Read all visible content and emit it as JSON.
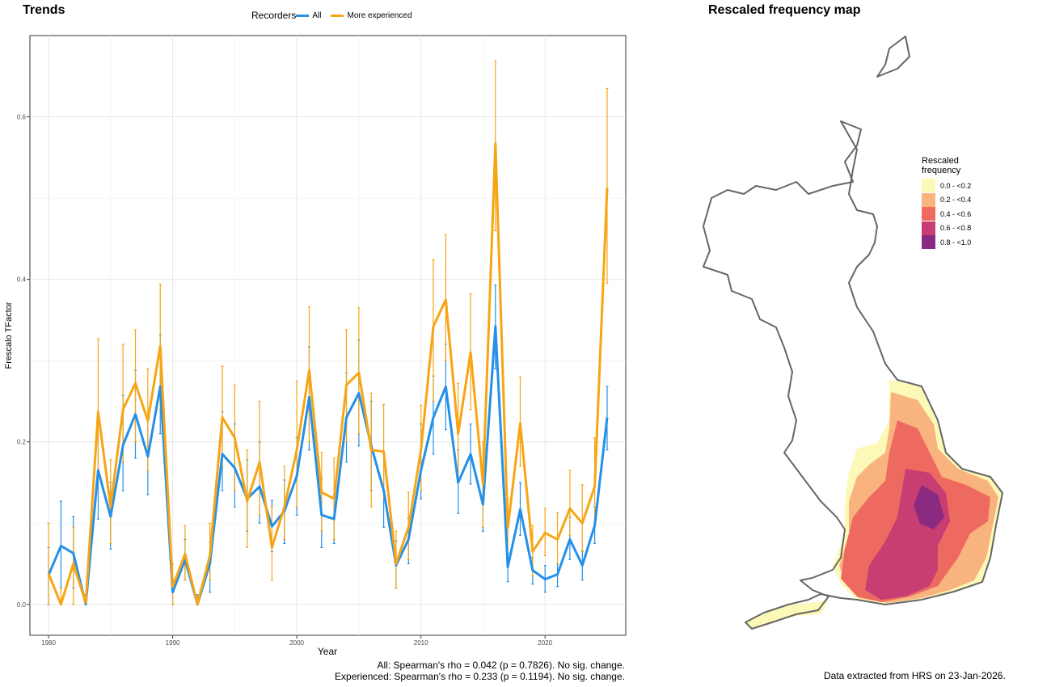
{
  "trends_title": "Trends",
  "map_title": "Rescaled frequency map",
  "legend": {
    "title": "Recorders",
    "entries": [
      {
        "label": "All",
        "color": "#2490e8"
      },
      {
        "label": "More experienced",
        "color": "#f7a514"
      }
    ]
  },
  "stats": {
    "all": "All: Spearman's rho = 0.042 (p = 0.7826). No sig. change.",
    "experienced": "Experienced: Spearman's rho = 0.233 (p = 0.1194). No sig. change."
  },
  "footer_note": "Data extracted from HRS on 23-Jan-2026.",
  "map_legend": {
    "title_line1": "Rescaled",
    "title_line2": "frequency",
    "classes": [
      {
        "label": "0.0 - <0.2",
        "color": "#fcf8b8"
      },
      {
        "label": "0.2 - <0.4",
        "color": "#f9b37e"
      },
      {
        "label": "0.4 - <0.6",
        "color": "#ee6a61"
      },
      {
        "label": "0.6 - <0.8",
        "color": "#c83d72"
      },
      {
        "label": "0.8 - <1.0",
        "color": "#8a2a80"
      }
    ]
  },
  "chart_data": {
    "type": "line",
    "xlabel": "Year",
    "ylabel": "Frescalo TFactor",
    "xlim": [
      1978.5,
      2026.5
    ],
    "ylim": [
      -0.038,
      0.7
    ],
    "xticks": [
      1980,
      1990,
      2000,
      2010,
      2020
    ],
    "yticks": [
      0.0,
      0.2,
      0.4,
      0.6
    ],
    "ytick_labels": [
      "0.0",
      "0.2",
      "0.4",
      "0.6"
    ],
    "grid": true,
    "legend_position": "top",
    "x": [
      1980,
      1981,
      1982,
      1983,
      1984,
      1985,
      1986,
      1987,
      1988,
      1989,
      1990,
      1991,
      1992,
      1993,
      1994,
      1995,
      1996,
      1997,
      1998,
      1999,
      2000,
      2001,
      2002,
      2003,
      2004,
      2005,
      2006,
      2007,
      2008,
      2009,
      2010,
      2011,
      2012,
      2013,
      2014,
      2015,
      2016,
      2017,
      2018,
      2019,
      2020,
      2021,
      2022,
      2023,
      2024,
      2025
    ],
    "series": [
      {
        "name": "All",
        "color": "#2490e8",
        "values": [
          0.036,
          0.072,
          0.063,
          0.0,
          0.165,
          0.108,
          0.196,
          0.234,
          0.182,
          0.268,
          0.015,
          0.055,
          0.0,
          0.05,
          0.185,
          0.168,
          0.13,
          0.145,
          0.096,
          0.115,
          0.158,
          0.255,
          0.11,
          0.105,
          0.23,
          0.26,
          0.195,
          0.14,
          0.048,
          0.08,
          0.165,
          0.23,
          0.268,
          0.15,
          0.185,
          0.123,
          0.342,
          0.046,
          0.117,
          0.042,
          0.031,
          0.037,
          0.08,
          0.048,
          0.097,
          0.23
        ],
        "lower": [
          0.0,
          0.02,
          0.02,
          0.0,
          0.105,
          0.068,
          0.14,
          0.18,
          0.135,
          0.21,
          0.0,
          0.03,
          0.0,
          0.015,
          0.14,
          0.12,
          0.09,
          0.1,
          0.065,
          0.075,
          0.11,
          0.19,
          0.07,
          0.075,
          0.175,
          0.195,
          0.14,
          0.095,
          0.02,
          0.05,
          0.13,
          0.185,
          0.215,
          0.112,
          0.148,
          0.09,
          0.29,
          0.028,
          0.085,
          0.025,
          0.015,
          0.022,
          0.055,
          0.03,
          0.075,
          0.19
        ],
        "upper": [
          0.07,
          0.127,
          0.108,
          0.012,
          0.228,
          0.15,
          0.257,
          0.288,
          0.23,
          0.332,
          0.03,
          0.08,
          0.012,
          0.076,
          0.237,
          0.222,
          0.178,
          0.2,
          0.128,
          0.153,
          0.205,
          0.317,
          0.155,
          0.135,
          0.285,
          0.325,
          0.25,
          0.185,
          0.078,
          0.106,
          0.222,
          0.281,
          0.32,
          0.19,
          0.222,
          0.157,
          0.393,
          0.063,
          0.15,
          0.058,
          0.048,
          0.05,
          0.107,
          0.066,
          0.12,
          0.268
        ]
      },
      {
        "name": "More experienced",
        "color": "#f7a514",
        "values": [
          0.038,
          0.0,
          0.05,
          0.002,
          0.237,
          0.12,
          0.24,
          0.272,
          0.226,
          0.318,
          0.022,
          0.062,
          0.0,
          0.06,
          0.23,
          0.205,
          0.127,
          0.175,
          0.07,
          0.12,
          0.19,
          0.288,
          0.138,
          0.13,
          0.27,
          0.285,
          0.19,
          0.188,
          0.05,
          0.095,
          0.19,
          0.342,
          0.375,
          0.21,
          0.31,
          0.148,
          0.567,
          0.094,
          0.223,
          0.065,
          0.088,
          0.08,
          0.118,
          0.1,
          0.145,
          0.513
        ],
        "lower": [
          0.0,
          0.0,
          0.0,
          0.0,
          0.16,
          0.075,
          0.175,
          0.2,
          0.165,
          0.24,
          0.0,
          0.03,
          0.0,
          0.03,
          0.17,
          0.14,
          0.07,
          0.11,
          0.03,
          0.08,
          0.12,
          0.2,
          0.09,
          0.08,
          0.2,
          0.21,
          0.12,
          0.13,
          0.02,
          0.055,
          0.14,
          0.25,
          0.3,
          0.15,
          0.24,
          0.095,
          0.46,
          0.05,
          0.17,
          0.035,
          0.06,
          0.05,
          0.085,
          0.065,
          0.1,
          0.395
        ],
        "upper": [
          0.1,
          0.02,
          0.095,
          0.01,
          0.327,
          0.178,
          0.32,
          0.338,
          0.29,
          0.394,
          0.05,
          0.097,
          0.01,
          0.1,
          0.293,
          0.27,
          0.19,
          0.25,
          0.12,
          0.17,
          0.275,
          0.366,
          0.187,
          0.18,
          0.338,
          0.365,
          0.26,
          0.246,
          0.09,
          0.138,
          0.245,
          0.424,
          0.455,
          0.272,
          0.382,
          0.2,
          0.669,
          0.13,
          0.28,
          0.097,
          0.118,
          0.113,
          0.165,
          0.147,
          0.205,
          0.635
        ]
      }
    ]
  }
}
